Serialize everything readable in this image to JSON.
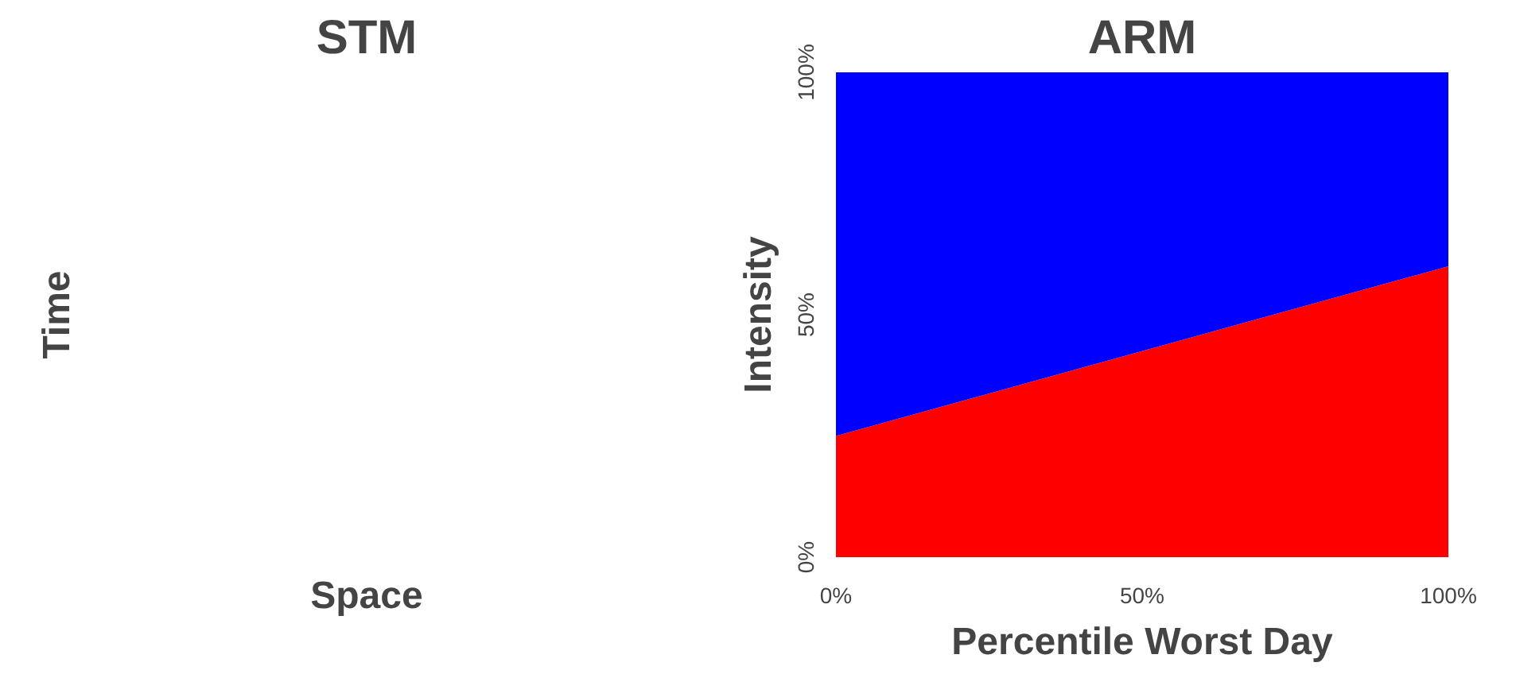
{
  "chart_data": [
    {
      "type": "other",
      "title": "STM",
      "xlabel": "Space",
      "ylabel": "Time"
    },
    {
      "type": "area",
      "title": "ARM",
      "xlabel": "Percentile Worst Day",
      "ylabel": "Intensity",
      "x": [
        0,
        100
      ],
      "stacked": true,
      "xlim": [
        0,
        100
      ],
      "ylim": [
        0,
        100
      ],
      "xticks": [
        {
          "value": 0,
          "label": "0%"
        },
        {
          "value": 50,
          "label": "50%"
        },
        {
          "value": 100,
          "label": "100%"
        }
      ],
      "yticks": [
        {
          "value": 0,
          "label": "0%"
        },
        {
          "value": 50,
          "label": "50%"
        },
        {
          "value": 100,
          "label": "100%"
        }
      ],
      "grid": false,
      "series": [
        {
          "color": "#ff0000",
          "values": [
            25,
            60
          ]
        },
        {
          "color": "#0000ff",
          "values": [
            75,
            40
          ]
        }
      ]
    }
  ]
}
